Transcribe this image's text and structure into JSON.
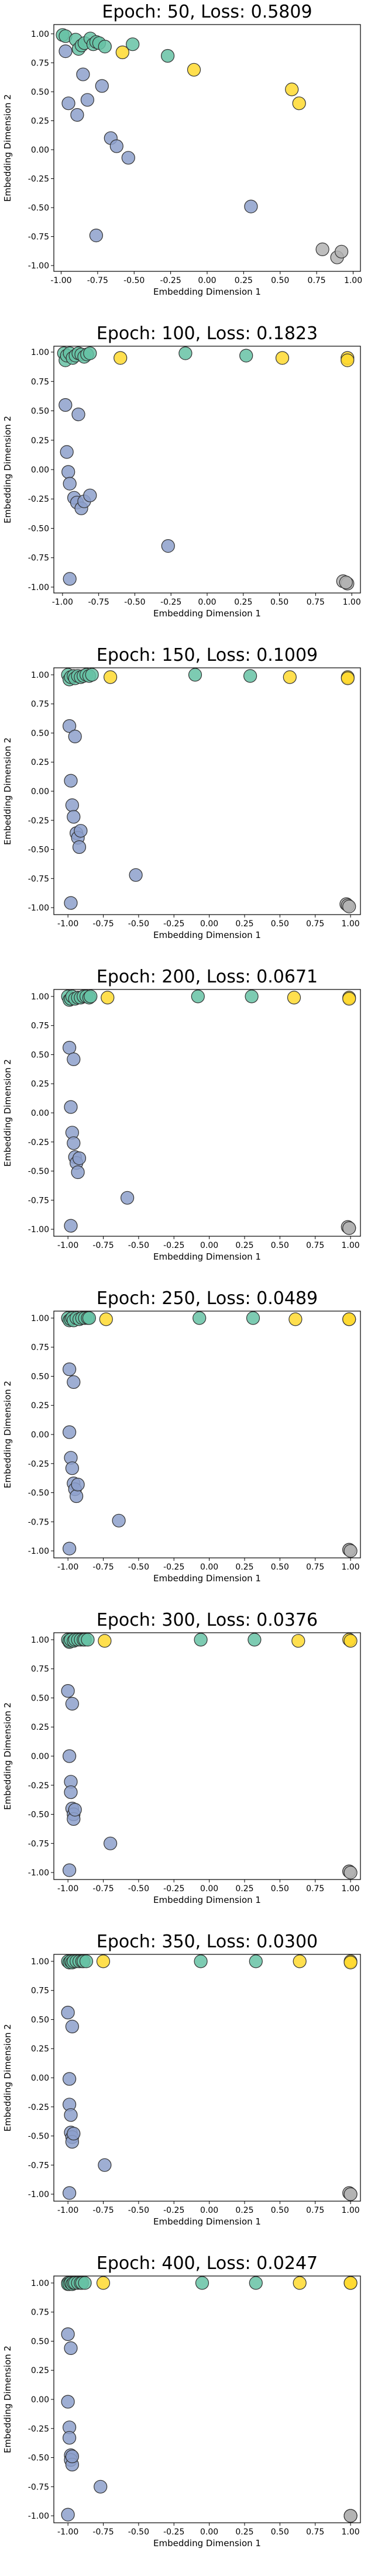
{
  "figure": {
    "colors": {
      "teal": "#66c2a5",
      "yellow": "#ffd92f",
      "lavender": "#8da0cb",
      "gray": "#b3b3b3",
      "edge": "#333333"
    }
  },
  "chart_data": [
    {
      "type": "scatter",
      "title": "Epoch: 50, Loss: 0.5809",
      "xlabel": "Embedding Dimension 1",
      "ylabel": "Embedding Dimension 2",
      "xlim": [
        -1.05,
        1.05
      ],
      "ylim": [
        -1.05,
        1.08
      ],
      "xticks": [
        "-1.00",
        "-0.75",
        "-0.50",
        "-0.25",
        "0.00",
        "0.25",
        "0.50",
        "0.75",
        "1.00"
      ],
      "yticks": [
        "-1.00",
        "-0.75",
        "-0.50",
        "-0.25",
        "0.00",
        "0.25",
        "0.50",
        "0.75",
        "1.00"
      ],
      "grid": false,
      "series": [
        {
          "color": "teal",
          "x": [
            -0.99,
            -0.97,
            -0.9,
            -0.88,
            -0.86,
            -0.84,
            -0.8,
            -0.78,
            -0.76,
            -0.74,
            -0.7,
            -0.51,
            -0.27
          ],
          "y": [
            0.99,
            0.98,
            0.95,
            0.87,
            0.9,
            0.92,
            0.96,
            0.91,
            0.93,
            0.92,
            0.89,
            0.91,
            0.81
          ]
        },
        {
          "color": "yellow",
          "x": [
            -0.58,
            -0.09,
            0.58,
            0.63
          ],
          "y": [
            0.84,
            0.69,
            0.52,
            0.4
          ]
        },
        {
          "color": "lavender",
          "x": [
            -0.97,
            -0.95,
            -0.89,
            -0.85,
            -0.82,
            -0.76,
            -0.72,
            -0.66,
            -0.62,
            -0.54,
            0.3
          ],
          "y": [
            0.85,
            0.4,
            0.3,
            0.65,
            0.43,
            -0.74,
            0.55,
            0.1,
            0.03,
            -0.07,
            -0.49
          ]
        },
        {
          "color": "gray",
          "x": [
            0.79,
            0.89,
            0.92
          ],
          "y": [
            -0.86,
            -0.93,
            -0.88
          ]
        }
      ]
    },
    {
      "type": "scatter",
      "title": "Epoch: 100, Loss: 0.1823",
      "xlabel": "Embedding Dimension 1",
      "ylabel": "Embedding Dimension 2",
      "xlim": [
        -1.06,
        1.06
      ],
      "ylim": [
        -1.05,
        1.05
      ],
      "xticks": [
        "-1.00",
        "-0.75",
        "-0.50",
        "-0.25",
        "0.00",
        "0.25",
        "0.50",
        "0.75",
        "1.00"
      ],
      "yticks": [
        "-1.00",
        "-0.75",
        "-0.50",
        "-0.25",
        "0.00",
        "0.25",
        "0.50",
        "0.75",
        "1.00"
      ],
      "grid": false,
      "series": [
        {
          "color": "teal",
          "x": [
            -0.99,
            -0.98,
            -0.97,
            -0.95,
            -0.93,
            -0.91,
            -0.89,
            -0.87,
            -0.85,
            -0.83,
            -0.81,
            -0.15,
            0.27
          ],
          "y": [
            0.99,
            0.93,
            0.97,
            0.99,
            0.95,
            0.97,
            0.99,
            0.98,
            0.96,
            0.98,
            0.99,
            0.99,
            0.97
          ]
        },
        {
          "color": "yellow",
          "x": [
            -0.6,
            0.52,
            0.97,
            0.97
          ],
          "y": [
            0.95,
            0.95,
            0.95,
            0.93
          ]
        },
        {
          "color": "lavender",
          "x": [
            -0.98,
            -0.97,
            -0.96,
            -0.95,
            -0.92,
            -0.9,
            -0.89,
            -0.87,
            -0.85,
            -0.81,
            -0.27,
            -0.95
          ],
          "y": [
            0.55,
            0.15,
            -0.02,
            -0.12,
            -0.24,
            -0.28,
            0.47,
            -0.33,
            -0.27,
            -0.22,
            -0.65,
            -0.93
          ]
        },
        {
          "color": "gray",
          "x": [
            0.94,
            0.97,
            0.96
          ],
          "y": [
            -0.95,
            -0.97,
            -0.96
          ]
        }
      ]
    },
    {
      "type": "scatter",
      "title": "Epoch: 150, Loss: 0.1009",
      "xlabel": "Embedding Dimension 1",
      "ylabel": "Embedding Dimension 2",
      "xlim": [
        -1.1,
        1.07
      ],
      "ylim": [
        -1.06,
        1.06
      ],
      "xticks": [
        "-1.00",
        "-0.75",
        "-0.50",
        "-0.25",
        "0.00",
        "0.25",
        "0.50",
        "0.75",
        "1.00"
      ],
      "yticks": [
        "-1.00",
        "-0.75",
        "-0.50",
        "-0.25",
        "0.00",
        "0.25",
        "0.50",
        "0.75",
        "1.00"
      ],
      "grid": false,
      "series": [
        {
          "color": "teal",
          "x": [
            -1.0,
            -0.99,
            -0.98,
            -0.96,
            -0.95,
            -0.93,
            -0.91,
            -0.89,
            -0.87,
            -0.85,
            -0.83,
            -0.1,
            0.29
          ],
          "y": [
            1.0,
            0.96,
            0.98,
            0.99,
            0.97,
            0.99,
            0.98,
            0.99,
            1.0,
            0.99,
            1.0,
            1.0,
            0.99
          ]
        },
        {
          "color": "yellow",
          "x": [
            -0.7,
            0.57,
            0.98,
            0.98
          ],
          "y": [
            0.98,
            0.98,
            0.98,
            0.97
          ]
        },
        {
          "color": "lavender",
          "x": [
            -0.99,
            -0.98,
            -0.97,
            -0.96,
            -0.94,
            -0.93,
            -0.92,
            -0.91,
            -0.95,
            -0.52,
            -0.98
          ],
          "y": [
            0.56,
            0.09,
            -0.12,
            -0.22,
            -0.36,
            -0.4,
            -0.48,
            -0.34,
            0.47,
            -0.72,
            -0.96
          ]
        },
        {
          "color": "gray",
          "x": [
            0.97,
            0.98,
            0.99
          ],
          "y": [
            -0.97,
            -0.98,
            -0.99
          ]
        }
      ]
    },
    {
      "type": "scatter",
      "title": "Epoch: 200, Loss: 0.0671",
      "xlabel": "Embedding Dimension 1",
      "ylabel": "Embedding Dimension 2",
      "xlim": [
        -1.1,
        1.07
      ],
      "ylim": [
        -1.06,
        1.06
      ],
      "xticks": [
        "-1.00",
        "-0.75",
        "-0.50",
        "-0.25",
        "0.00",
        "0.25",
        "0.50",
        "0.75",
        "1.00"
      ],
      "yticks": [
        "-1.00",
        "-0.75",
        "-0.50",
        "-0.25",
        "0.00",
        "0.25",
        "0.50",
        "0.75",
        "1.00"
      ],
      "grid": false,
      "series": [
        {
          "color": "teal",
          "x": [
            -1.0,
            -0.99,
            -0.98,
            -0.97,
            -0.95,
            -0.93,
            -0.91,
            -0.89,
            -0.87,
            -0.85,
            -0.84,
            -0.08,
            0.3
          ],
          "y": [
            1.0,
            0.97,
            0.98,
            1.0,
            0.98,
            0.99,
            0.99,
            1.0,
            1.0,
            0.99,
            1.0,
            1.0,
            1.0
          ]
        },
        {
          "color": "yellow",
          "x": [
            -0.72,
            0.6,
            0.99,
            0.99
          ],
          "y": [
            0.99,
            0.99,
            0.99,
            0.98
          ]
        },
        {
          "color": "lavender",
          "x": [
            -0.99,
            -0.98,
            -0.97,
            -0.96,
            -0.95,
            -0.94,
            -0.93,
            -0.96,
            -0.92,
            -0.58,
            -0.98
          ],
          "y": [
            0.56,
            0.05,
            -0.17,
            -0.26,
            -0.38,
            -0.43,
            -0.51,
            0.46,
            -0.39,
            -0.73,
            -0.97
          ]
        },
        {
          "color": "gray",
          "x": [
            0.98,
            0.99,
            0.99
          ],
          "y": [
            -0.98,
            -0.99,
            -0.99
          ]
        }
      ]
    },
    {
      "type": "scatter",
      "title": "Epoch: 250, Loss: 0.0489",
      "xlabel": "Embedding Dimension 1",
      "ylabel": "Embedding Dimension 2",
      "xlim": [
        -1.1,
        1.07
      ],
      "ylim": [
        -1.06,
        1.06
      ],
      "xticks": [
        "-1.00",
        "-0.75",
        "-0.50",
        "-0.25",
        "0.00",
        "0.25",
        "0.50",
        "0.75",
        "1.00"
      ],
      "yticks": [
        "-1.00",
        "-0.75",
        "-0.50",
        "-0.25",
        "0.00",
        "0.25",
        "0.50",
        "0.75",
        "1.00"
      ],
      "grid": false,
      "series": [
        {
          "color": "teal",
          "x": [
            -1.0,
            -0.99,
            -0.98,
            -0.97,
            -0.96,
            -0.94,
            -0.92,
            -0.9,
            -0.88,
            -0.86,
            -0.85,
            -0.07,
            0.31
          ],
          "y": [
            1.0,
            0.98,
            0.99,
            1.0,
            0.98,
            1.0,
            0.99,
            1.0,
            1.0,
            1.0,
            1.0,
            1.0,
            1.0
          ]
        },
        {
          "color": "yellow",
          "x": [
            -0.73,
            0.61,
            0.99,
            0.99
          ],
          "y": [
            0.99,
            0.99,
            0.99,
            0.99
          ]
        },
        {
          "color": "lavender",
          "x": [
            -0.99,
            -0.99,
            -0.98,
            -0.97,
            -0.96,
            -0.95,
            -0.94,
            -0.96,
            -0.93,
            -0.64,
            -0.99
          ],
          "y": [
            0.56,
            0.02,
            -0.2,
            -0.29,
            -0.42,
            -0.47,
            -0.53,
            0.45,
            -0.43,
            -0.74,
            -0.98
          ]
        },
        {
          "color": "gray",
          "x": [
            0.99,
            0.99,
            1.0
          ],
          "y": [
            -0.99,
            -0.99,
            -1.0
          ]
        }
      ]
    },
    {
      "type": "scatter",
      "title": "Epoch: 300, Loss: 0.0376",
      "xlabel": "Embedding Dimension 1",
      "ylabel": "Embedding Dimension 2",
      "xlim": [
        -1.1,
        1.07
      ],
      "ylim": [
        -1.06,
        1.06
      ],
      "xticks": [
        "-1.00",
        "-0.75",
        "-0.50",
        "-0.25",
        "0.00",
        "0.25",
        "0.50",
        "0.75",
        "1.00"
      ],
      "yticks": [
        "-1.00",
        "-0.75",
        "-0.50",
        "-0.25",
        "0.00",
        "0.25",
        "0.50",
        "0.75",
        "1.00"
      ],
      "grid": false,
      "series": [
        {
          "color": "teal",
          "x": [
            -1.0,
            -0.99,
            -0.99,
            -0.98,
            -0.96,
            -0.95,
            -0.93,
            -0.91,
            -0.89,
            -0.88,
            -0.86,
            -0.06,
            0.32
          ],
          "y": [
            1.0,
            0.98,
            0.99,
            1.0,
            0.99,
            1.0,
            1.0,
            1.0,
            1.0,
            1.0,
            1.0,
            1.0,
            1.0
          ]
        },
        {
          "color": "yellow",
          "x": [
            -0.74,
            0.63,
            0.99,
            1.0
          ],
          "y": [
            0.99,
            0.99,
            1.0,
            0.99
          ]
        },
        {
          "color": "lavender",
          "x": [
            -1.0,
            -0.99,
            -0.98,
            -0.98,
            -0.97,
            -0.96,
            -0.96,
            -0.97,
            -0.95,
            -0.7,
            -0.99
          ],
          "y": [
            0.56,
            0.0,
            -0.22,
            -0.31,
            -0.45,
            -0.5,
            -0.54,
            0.45,
            -0.46,
            -0.75,
            -0.98
          ]
        },
        {
          "color": "gray",
          "x": [
            0.99,
            0.99,
            1.0
          ],
          "y": [
            -0.99,
            -0.99,
            -1.0
          ]
        }
      ]
    },
    {
      "type": "scatter",
      "title": "Epoch: 350, Loss: 0.0300",
      "xlabel": "Embedding Dimension 1",
      "ylabel": "Embedding Dimension 2",
      "xlim": [
        -1.1,
        1.07
      ],
      "ylim": [
        -1.06,
        1.06
      ],
      "xticks": [
        "-1.00",
        "-0.75",
        "-0.50",
        "-0.25",
        "0.00",
        "0.25",
        "0.50",
        "0.75",
        "1.00"
      ],
      "yticks": [
        "-1.00",
        "-0.75",
        "-0.50",
        "-0.25",
        "0.00",
        "0.25",
        "0.50",
        "0.75",
        "1.00"
      ],
      "grid": false,
      "series": [
        {
          "color": "teal",
          "x": [
            -1.0,
            -0.99,
            -0.99,
            -0.98,
            -0.97,
            -0.96,
            -0.94,
            -0.92,
            -0.9,
            -0.89,
            -0.87,
            -0.06,
            0.33
          ],
          "y": [
            1.0,
            0.99,
            0.99,
            1.0,
            0.99,
            1.0,
            1.0,
            1.0,
            1.0,
            1.0,
            1.0,
            1.0,
            1.0
          ]
        },
        {
          "color": "yellow",
          "x": [
            -0.75,
            0.64,
            1.0,
            1.0
          ],
          "y": [
            1.0,
            1.0,
            1.0,
            0.99
          ]
        },
        {
          "color": "lavender",
          "x": [
            -1.0,
            -0.99,
            -0.99,
            -0.98,
            -0.98,
            -0.97,
            -0.97,
            -0.97,
            -0.96,
            -0.74,
            -0.99
          ],
          "y": [
            0.56,
            -0.01,
            -0.23,
            -0.32,
            -0.47,
            -0.51,
            -0.55,
            0.44,
            -0.48,
            -0.75,
            -0.99
          ]
        },
        {
          "color": "gray",
          "x": [
            0.99,
            1.0,
            1.0
          ],
          "y": [
            -0.99,
            -1.0,
            -1.0
          ]
        }
      ]
    },
    {
      "type": "scatter",
      "title": "Epoch: 400, Loss: 0.0247",
      "xlabel": "Embedding Dimension 1",
      "ylabel": "Embedding Dimension 2",
      "xlim": [
        -1.1,
        1.07
      ],
      "ylim": [
        -1.06,
        1.06
      ],
      "xticks": [
        "-1.00",
        "-0.75",
        "-0.50",
        "-0.25",
        "0.00",
        "0.25",
        "0.50",
        "0.75",
        "1.00"
      ],
      "yticks": [
        "-1.00",
        "-0.75",
        "-0.50",
        "-0.25",
        "0.00",
        "0.25",
        "0.50",
        "0.75",
        "1.00"
      ],
      "grid": false,
      "series": [
        {
          "color": "teal",
          "x": [
            -1.0,
            -1.0,
            -0.99,
            -0.98,
            -0.97,
            -0.96,
            -0.95,
            -0.93,
            -0.91,
            -0.9,
            -0.88,
            -0.05,
            0.33
          ],
          "y": [
            1.0,
            0.99,
            0.99,
            1.0,
            0.99,
            1.0,
            1.0,
            1.0,
            1.0,
            1.0,
            1.0,
            1.0,
            1.0
          ]
        },
        {
          "color": "yellow",
          "x": [
            -0.75,
            0.64,
            1.0,
            1.0
          ],
          "y": [
            1.0,
            1.0,
            1.0,
            1.0
          ]
        },
        {
          "color": "lavender",
          "x": [
            -1.0,
            -1.0,
            -0.99,
            -0.99,
            -0.98,
            -0.98,
            -0.97,
            -0.98,
            -0.97,
            -0.77,
            -1.0
          ],
          "y": [
            0.56,
            -0.02,
            -0.24,
            -0.33,
            -0.48,
            -0.52,
            -0.56,
            0.44,
            -0.49,
            -0.75,
            -0.99
          ]
        },
        {
          "color": "gray",
          "x": [
            1.0,
            1.0,
            1.0
          ],
          "y": [
            -1.0,
            -1.0,
            -1.0
          ]
        }
      ]
    }
  ]
}
